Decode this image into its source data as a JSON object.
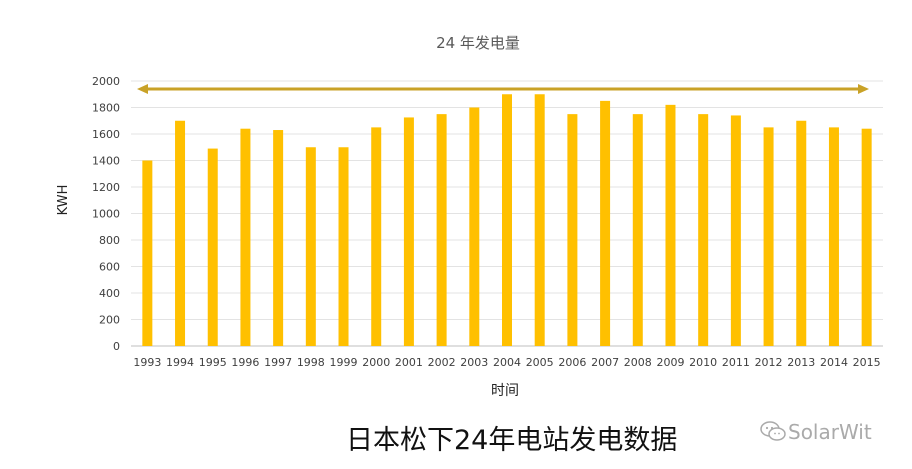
{
  "chart_data": {
    "type": "bar",
    "title": "24 年发电量",
    "xlabel": "时间",
    "ylabel": "KWH",
    "ylim": [
      0,
      2000
    ],
    "yticks": [
      0,
      200,
      400,
      600,
      800,
      1000,
      1200,
      1400,
      1600,
      1800,
      2000
    ],
    "categories": [
      "1993",
      "1994",
      "1995",
      "1996",
      "1997",
      "1998",
      "1999",
      "2000",
      "2001",
      "2002",
      "2003",
      "2004",
      "2005",
      "2006",
      "2007",
      "2008",
      "2009",
      "2010",
      "2011",
      "2012",
      "2013",
      "2014",
      "2015"
    ],
    "values": [
      1400,
      1700,
      1490,
      1640,
      1630,
      1500,
      1500,
      1650,
      1725,
      1750,
      1800,
      1900,
      1900,
      1750,
      1850,
      1750,
      1820,
      1750,
      1740,
      1650,
      1700,
      1650,
      1640
    ],
    "bar_color": "#FFC000",
    "arrow_color": "#C9A227",
    "arrow_value": 1940,
    "grid": true,
    "legend": "none"
  },
  "caption": "日本松下24年电站发电数据",
  "watermark": {
    "icon": "wechat-icon",
    "text": "SolarWit"
  }
}
